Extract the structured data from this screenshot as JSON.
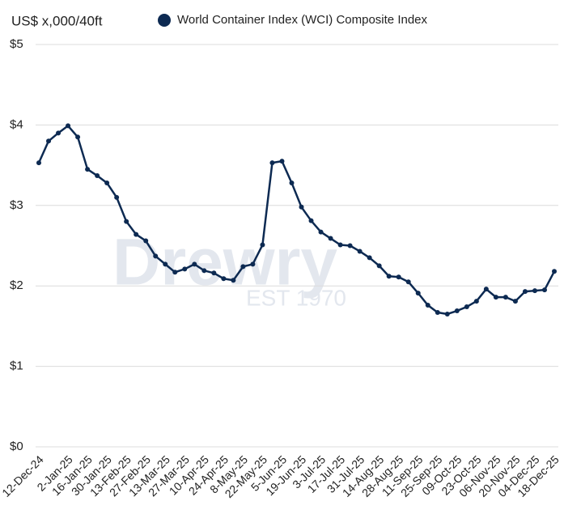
{
  "chart_data": {
    "type": "line",
    "y_axis_label": "US$ x,000/40ft",
    "watermark": "Drewry",
    "watermark_subtitle": "EST 1970",
    "categories": [
      "12-Dec-24",
      null,
      null,
      "2-Jan-25",
      null,
      "16-Jan-25",
      null,
      "30-Jan-25",
      null,
      "13-Feb-25",
      null,
      "27-Feb-25",
      null,
      "13-Mar-25",
      null,
      "27-Mar-25",
      null,
      "10-Apr-25",
      null,
      "24-Apr-25",
      null,
      "8-May-25",
      null,
      "22-May-25",
      null,
      "5-Jun-25",
      null,
      "19-Jun-25",
      null,
      "3-Jul-25",
      null,
      "17-Jul-25",
      null,
      "31-Jul-25",
      null,
      "14-Aug-25",
      null,
      "28-Aug-25",
      null,
      "11-Sep-25",
      null,
      "25-Sep-25",
      null,
      "09-Oct-25",
      null,
      "23-Oct-25",
      null,
      "06-Nov-25",
      null,
      "20-Nov-25",
      null,
      "04-Dec-25",
      null,
      "18-Dec-25"
    ],
    "series": [
      {
        "name": "World Container Index (WCI) Composite Index",
        "color": "#0d2a52",
        "values": [
          3.53,
          3.8,
          3.9,
          3.99,
          3.85,
          3.45,
          3.37,
          3.28,
          3.1,
          2.8,
          2.64,
          2.56,
          2.37,
          2.27,
          2.17,
          2.21,
          2.27,
          2.19,
          2.16,
          2.09,
          2.07,
          2.24,
          2.27,
          2.51,
          3.53,
          3.55,
          3.28,
          2.98,
          2.81,
          2.67,
          2.59,
          2.51,
          2.5,
          2.43,
          2.35,
          2.25,
          2.12,
          2.11,
          2.05,
          1.91,
          1.76,
          1.67,
          1.65,
          1.69,
          1.74,
          1.81,
          1.96,
          1.86,
          1.86,
          1.81,
          1.93,
          1.94,
          1.95,
          2.18
        ]
      }
    ],
    "ylim": [
      0,
      5
    ],
    "yticks": [
      {
        "value": 0,
        "label": "$0"
      },
      {
        "value": 1,
        "label": "$1"
      },
      {
        "value": 2,
        "label": "$2"
      },
      {
        "value": 3,
        "label": "$3"
      },
      {
        "value": 4,
        "label": "$4"
      },
      {
        "value": 5,
        "label": "$5"
      }
    ],
    "grid": true
  }
}
